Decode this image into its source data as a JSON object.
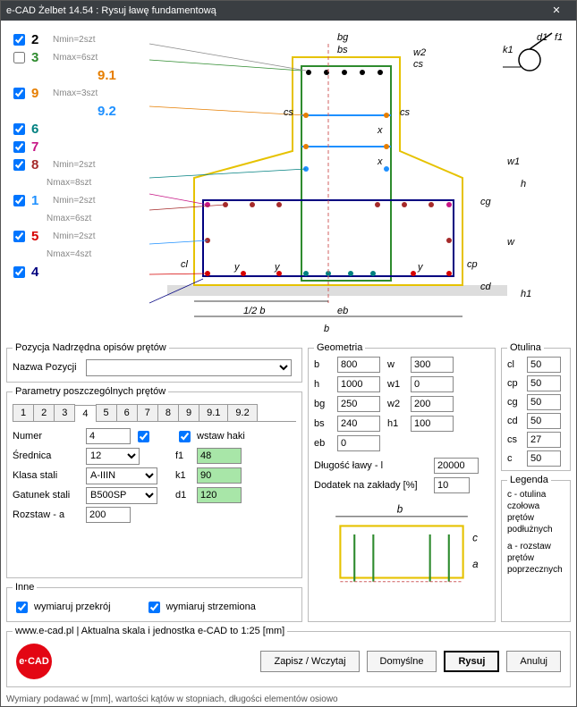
{
  "window": {
    "title": "e-CAD Żelbet 14.54 : Rysuj ławę fundamentową"
  },
  "bars": [
    {
      "n": "2",
      "txt": "Nmin=2szt",
      "color": "#000000",
      "chk": true
    },
    {
      "n": "3",
      "txt": "Nmax=6szt",
      "color": "#2e8b2e",
      "chk": false
    },
    {
      "n": "9.1",
      "txt": "",
      "color": "#e67e00",
      "chk": false,
      "sub": true
    },
    {
      "n": "9",
      "txt": "Nmax=3szt",
      "color": "#e67e00",
      "chk": true
    },
    {
      "n": "9.2",
      "txt": "",
      "color": "#1e90ff",
      "chk": false,
      "sub": true
    },
    {
      "n": "6",
      "txt": "",
      "color": "#008080",
      "chk": true
    },
    {
      "n": "7",
      "txt": "",
      "color": "#c71585",
      "chk": true
    },
    {
      "n": "8",
      "txt": "Nmin=2szt",
      "color": "#a52a2a",
      "chk": true
    },
    {
      "n": "",
      "txt": "Nmax=8szt",
      "color": "#888",
      "chk": null
    },
    {
      "n": "1",
      "txt": "Nmin=2szt",
      "color": "#1e90ff",
      "chk": true
    },
    {
      "n": "",
      "txt": "Nmax=6szt",
      "color": "#888",
      "chk": null
    },
    {
      "n": "5",
      "txt": "Nmin=2szt",
      "color": "#d60000",
      "chk": true
    },
    {
      "n": "",
      "txt": "Nmax=4szt",
      "color": "#888",
      "chk": null
    },
    {
      "n": "4",
      "txt": "",
      "color": "#000080",
      "chk": true
    }
  ],
  "groups": {
    "pos": {
      "title": "Pozycja Nadrzędna opisów prętów",
      "name_lbl": "Nazwa Pozycji",
      "name_val": ""
    },
    "params": {
      "title": "Parametry poszczególnych prętów"
    },
    "geom": {
      "title": "Geometria"
    },
    "otul": {
      "title": "Otulina"
    },
    "inne": {
      "title": "Inne"
    },
    "legend": {
      "title": "Legenda",
      "txt1": "c - otulina czołowa prętów podłużnych",
      "txt2": "a - rozstaw prętów poprzecznych"
    },
    "footer": {
      "title": "www.e-cad.pl | Aktualna skala i jednostka e-CAD to 1:25 [mm]"
    }
  },
  "tabs": [
    "1",
    "2",
    "3",
    "4",
    "5",
    "6",
    "7",
    "8",
    "9",
    "9.1",
    "9.2"
  ],
  "tab_active": "4",
  "param": {
    "numer_lbl": "Numer",
    "numer": "4",
    "srednica_lbl": "Średnica",
    "srednica": "12",
    "klasa_lbl": "Klasa stali",
    "klasa": "A-IIIN",
    "gatunek_lbl": "Gatunek stali",
    "gatunek": "B500SP",
    "rozstaw_lbl": "Rozstaw - a",
    "rozstaw": "200",
    "haki_lbl": "wstaw haki",
    "f1_lbl": "f1",
    "f1": "48",
    "k1_lbl": "k1",
    "k1": "90",
    "d1_lbl": "d1",
    "d1": "120"
  },
  "geom": {
    "b": "800",
    "h": "1000",
    "bg": "250",
    "bs": "240",
    "eb": "0",
    "w": "300",
    "w1": "0",
    "w2": "200",
    "h1": "100",
    "dl_lbl": "Długość ławy - l",
    "dl": "20000",
    "dod_lbl": "Dodatek na zakłady [%]",
    "dod": "10"
  },
  "otul": {
    "cl": "50",
    "cp": "50",
    "cg": "50",
    "cd": "50",
    "cs": "27",
    "c": "50"
  },
  "inne": {
    "przekroj": "wymiaruj przekrój",
    "strzem": "wymiaruj strzemiona"
  },
  "buttons": {
    "save": "Zapisz / Wczytaj",
    "default": "Domyślne",
    "draw": "Rysuj",
    "cancel": "Anuluj"
  },
  "status": "Wymiary podawać w [mm], wartości kątów w stopniach, długości elementów osiowo",
  "logo": "e·CAD",
  "dim_labels": {
    "bg": "bg",
    "bs": "bs",
    "w2": "w2",
    "cs": "cs",
    "x": "x",
    "w1": "w1",
    "h": "h",
    "cg": "cg",
    "w": "w",
    "cd": "cd",
    "h1": "h1",
    "cl": "cl",
    "cp": "cp",
    "y": "y",
    "halfb": "1/2 b",
    "eb": "eb",
    "b": "b",
    "d1": "d1",
    "f1": "f1",
    "k1": "k1",
    "miniB": "b",
    "miniC": "c",
    "miniA": "a"
  }
}
